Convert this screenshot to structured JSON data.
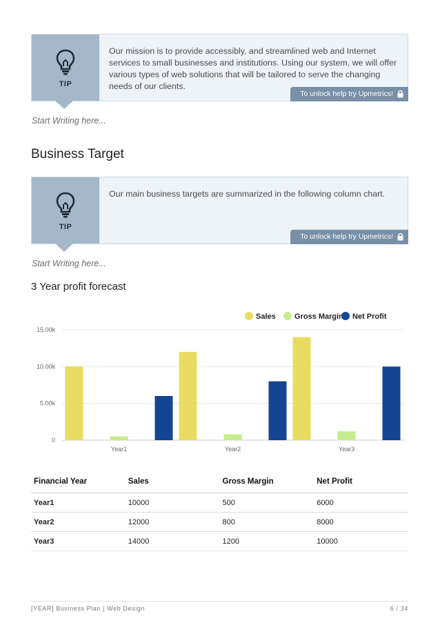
{
  "tips": [
    {
      "label": "TIP",
      "text": "Our mission is to provide accessibly, and streamlined web and Internet services to small businesses and institutions. Using our system, we will offer various types of web solutions that will be tailored to serve the changing needs of our clients.",
      "unlock": "To unlock help try Upmetrics!",
      "icon": "lightbulb-icon"
    },
    {
      "label": "TIP",
      "text": "Our main business targets are summarized in the following column chart.",
      "unlock": "To unlock help try Upmetrics!",
      "icon": "lightbulb-icon"
    }
  ],
  "placeholders": [
    "Start Writing here...",
    "Start Writing here..."
  ],
  "section_title": "Business Target",
  "chart_title": "3 Year profit forecast",
  "chart_data": {
    "type": "bar",
    "categories": [
      "Year1",
      "Year2",
      "Year3"
    ],
    "series": [
      {
        "name": "Sales",
        "values": [
          10000,
          12000,
          14000
        ],
        "color": "#e8dc62"
      },
      {
        "name": "Gross Margin",
        "values": [
          500,
          800,
          1200
        ],
        "color": "#c5ec8e"
      },
      {
        "name": "Net Profit",
        "values": [
          6000,
          8000,
          10000
        ],
        "color": "#144593"
      }
    ],
    "yticks": [
      "0",
      "5.00k",
      "10.00k",
      "15.00k"
    ],
    "ylim": [
      0,
      15000
    ],
    "grid": true,
    "legend": "top-right"
  },
  "table": {
    "headers": [
      "Financial Year",
      "Sales",
      "Gross Margin",
      "Net Profit"
    ],
    "rows": [
      [
        "Year1",
        "10000",
        "500",
        "6000"
      ],
      [
        "Year2",
        "12000",
        "800",
        "8000"
      ],
      [
        "Year3",
        "14000",
        "1200",
        "10000"
      ]
    ]
  },
  "footer": {
    "left": "[YEAR] Business Plan | Web Design",
    "right": "6 / 34"
  }
}
